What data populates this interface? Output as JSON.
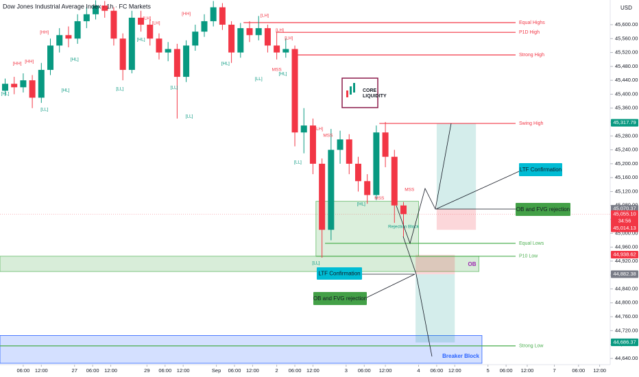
{
  "chart_data": {
    "type": "candlestick",
    "title": "Dow Jones Industrial Average Index · 1h · FC Markets",
    "currency": "USD",
    "xlim": [
      -1.7,
      200.5
    ],
    "ylim": [
      44626,
      45671
    ],
    "xticks": [
      {
        "value": 6,
        "label": "06:00"
      },
      {
        "value": 12,
        "label": "12:00"
      },
      {
        "value": 23,
        "label": "27"
      },
      {
        "value": 29,
        "label": "06:00"
      },
      {
        "value": 35,
        "label": "12:00"
      },
      {
        "value": 47,
        "label": "29"
      },
      {
        "value": 53,
        "label": "06:00"
      },
      {
        "value": 59,
        "label": "12:00"
      },
      {
        "value": 70,
        "label": "Sep"
      },
      {
        "value": 76,
        "label": "06:00"
      },
      {
        "value": 82,
        "label": "12:00"
      },
      {
        "value": 90,
        "label": "2"
      },
      {
        "value": 96,
        "label": "06:00"
      },
      {
        "value": 102,
        "label": "12:00"
      },
      {
        "value": 113,
        "label": "3"
      },
      {
        "value": 119,
        "label": "06:00"
      },
      {
        "value": 126,
        "label": "12:00"
      },
      {
        "value": 137,
        "label": "4"
      },
      {
        "value": 143,
        "label": "06:00"
      },
      {
        "value": 149,
        "label": "12:00"
      },
      {
        "value": 160,
        "label": "5"
      },
      {
        "value": 166,
        "label": "06:00"
      },
      {
        "value": 173,
        "label": "12:00"
      },
      {
        "value": 182,
        "label": "7"
      },
      {
        "value": 190,
        "label": "06:00"
      },
      {
        "value": 197,
        "label": "12:00"
      }
    ],
    "yticks": [
      {
        "value": 44640,
        "label": "44,640.00"
      },
      {
        "value": 44680,
        "label": "44,680.00"
      },
      {
        "value": 44720,
        "label": "44,720.00"
      },
      {
        "value": 44760,
        "label": "44,760.00"
      },
      {
        "value": 44800,
        "label": "44,800.00"
      },
      {
        "value": 44840,
        "label": "44,840.00"
      },
      {
        "value": 44880,
        "label": "44,880.00"
      },
      {
        "value": 44920,
        "label": "44,920.00"
      },
      {
        "value": 44960,
        "label": "44,960.00"
      },
      {
        "value": 45000,
        "label": "45,000.00"
      },
      {
        "value": 45040,
        "label": "45,040.00"
      },
      {
        "value": 45080,
        "label": "45,080.00"
      },
      {
        "value": 45120,
        "label": "45,120.00"
      },
      {
        "value": 45160,
        "label": "45,160.00"
      },
      {
        "value": 45200,
        "label": "45,200.00"
      },
      {
        "value": 45240,
        "label": "45,240.00"
      },
      {
        "value": 45280,
        "label": "45,280.00"
      },
      {
        "value": 45320,
        "label": "45,320.00"
      },
      {
        "value": 45360,
        "label": "45,360.00"
      },
      {
        "value": 45400,
        "label": "45,400.00"
      },
      {
        "value": 45440,
        "label": "45,440.00"
      },
      {
        "value": 45480,
        "label": "45,480.00"
      },
      {
        "value": 45520,
        "label": "45,520.00"
      },
      {
        "value": 45560,
        "label": "45,560.00"
      },
      {
        "value": 45600,
        "label": "45,600.00"
      }
    ],
    "up_color": "#089981",
    "down_color": "#f23645",
    "x": [
      0,
      3,
      6,
      9,
      12,
      15,
      18,
      21,
      24,
      27,
      30,
      33,
      36,
      39,
      42,
      45,
      48,
      51,
      54,
      57,
      60,
      63,
      66,
      69,
      72,
      75,
      78,
      81,
      84,
      87,
      90,
      93,
      96,
      99,
      102,
      105,
      108,
      111,
      114,
      117,
      120,
      123,
      126,
      129,
      132
    ],
    "open": [
      45410,
      45430,
      45420,
      45440,
      45390,
      45470,
      45540,
      45570,
      45560,
      45610,
      45630,
      45655,
      45640,
      45560,
      45470,
      45620,
      45600,
      45560,
      45520,
      45530,
      45450,
      45540,
      45580,
      45610,
      45650,
      45600,
      45520,
      45590,
      45570,
      45590,
      45540,
      45520,
      45530,
      45290,
      45310,
      45200,
      45010,
      45240,
      45270,
      45200,
      45150,
      45110,
      45290,
      45220,
      45080
    ],
    "high": [
      45445,
      45450,
      45460,
      45455,
      45490,
      45560,
      45590,
      45595,
      45630,
      45650,
      45670,
      45668,
      45650,
      45575,
      45640,
      45640,
      45615,
      45575,
      45550,
      45545,
      45555,
      45600,
      45630,
      45668,
      45662,
      45610,
      45605,
      45610,
      45625,
      45600,
      45580,
      45560,
      45540,
      45360,
      45330,
      45215,
      45300,
      45295,
      45285,
      45220,
      45170,
      45310,
      45320,
      45240,
      45090
    ],
    "low": [
      45395,
      45400,
      45405,
      45360,
      45375,
      45455,
      45520,
      45535,
      45545,
      45590,
      45615,
      45620,
      45540,
      45440,
      45460,
      45580,
      45540,
      45500,
      45495,
      45330,
      45435,
      45525,
      45565,
      45595,
      45585,
      45490,
      45505,
      45550,
      45555,
      45520,
      45500,
      45505,
      45250,
      45230,
      45170,
      44930,
      44980,
      45200,
      45170,
      45120,
      45085,
      45095,
      45190,
      45030,
      44990
    ],
    "close": [
      45430,
      45420,
      45440,
      45390,
      45470,
      45540,
      45570,
      45560,
      45610,
      45630,
      45655,
      45640,
      45560,
      45470,
      45620,
      45600,
      45560,
      45520,
      45530,
      45450,
      45540,
      45580,
      45610,
      45650,
      45600,
      45520,
      45590,
      45570,
      45590,
      45540,
      45520,
      45530,
      45290,
      45310,
      45200,
      45010,
      45240,
      45270,
      45200,
      45150,
      45110,
      45290,
      45220,
      45080,
      45055
    ],
    "current_price": 45055.1,
    "levels": [
      {
        "label": "Equal Highs",
        "price": 45606,
        "x_start": 79,
        "color": "#f23645"
      },
      {
        "label": "P1D High",
        "price": 45578,
        "x_start": 90,
        "color": "#f23645"
      },
      {
        "label": "Strong High",
        "price": 45513,
        "x_start": 96,
        "color": "#f23645"
      },
      {
        "label": "Swing High",
        "price": 45316,
        "x_start": 124,
        "color": "#f23645"
      },
      {
        "label": "Equal Lows",
        "price": 44971,
        "x_start": 106,
        "color": "#4caf50"
      },
      {
        "label": "P10 Low",
        "price": 44934,
        "x_start": 103,
        "color": "#4caf50"
      },
      {
        "label": "Strong Low",
        "price": 44676,
        "x_start": -1.7,
        "color": "#4caf50"
      }
    ],
    "zones": [
      {
        "label": "OB",
        "x": [
          -1.7,
          157
        ],
        "price": [
          44890,
          44934
        ],
        "fill": "rgba(76,175,80,0.22)",
        "stroke": "#66bb6a",
        "label_color": "#9c27b0"
      },
      {
        "label": "Breaker Block",
        "x": [
          -1.7,
          158
        ],
        "price": [
          44626,
          44706
        ],
        "fill": "rgba(41,98,255,0.2)",
        "stroke": "#2962ff",
        "label_color": "#2962ff"
      },
      {
        "x": [
          103,
          137
        ],
        "price": [
          44934,
          45092
        ],
        "fill": "rgba(76,175,80,0.2)",
        "stroke": "#66bb6a"
      },
      {
        "x": [
          143,
          156
        ],
        "price": [
          45070,
          45317
        ],
        "fill": "rgba(38,166,154,0.2)",
        "stroke": "none"
      },
      {
        "x": [
          143,
          156
        ],
        "price": [
          45010,
          45070
        ],
        "fill": "rgba(242,54,69,0.2)",
        "stroke": "none"
      },
      {
        "x": [
          136,
          149
        ],
        "price": [
          44882,
          44938
        ],
        "fill": "rgba(242,54,69,0.2)",
        "stroke": "none"
      },
      {
        "x": [
          136,
          149
        ],
        "price": [
          44686,
          44882
        ],
        "fill": "rgba(38,166,154,0.2)",
        "stroke": "none"
      }
    ],
    "structure_labels": [
      {
        "text": "[HL]",
        "x": 0,
        "price": 45401,
        "color": "#089981"
      },
      {
        "text": "[HH]",
        "x": 4,
        "price": 45488,
        "color": "#f23645"
      },
      {
        "text": "[HH]",
        "x": 8,
        "price": 45494,
        "color": "#f23645"
      },
      {
        "text": "[HH]",
        "x": 13,
        "price": 45578,
        "color": "#f23645"
      },
      {
        "text": "[LL]",
        "x": 13,
        "price": 45356,
        "color": "#089981"
      },
      {
        "text": "[HL]",
        "x": 20,
        "price": 45411,
        "color": "#089981"
      },
      {
        "text": "[HL]",
        "x": 23,
        "price": 45500,
        "color": "#089981"
      },
      {
        "text": "[LL]",
        "x": 38,
        "price": 45415,
        "color": "#089981"
      },
      {
        "text": "[LH]",
        "x": 47,
        "price": 45618,
        "color": "#f23645"
      },
      {
        "text": "[LH]",
        "x": 50,
        "price": 45604,
        "color": "#f23645"
      },
      {
        "text": "[HL]",
        "x": 45,
        "price": 45557,
        "color": "#089981"
      },
      {
        "text": "[LL]",
        "x": 56,
        "price": 45419,
        "color": "#089981"
      },
      {
        "text": "[HH]",
        "x": 60,
        "price": 45631,
        "color": "#f23645"
      },
      {
        "text": "[LL]",
        "x": 61,
        "price": 45336,
        "color": "#089981"
      },
      {
        "text": "[HL]",
        "x": 73,
        "price": 45488,
        "color": "#089981"
      },
      {
        "text": "[LH]",
        "x": 86,
        "price": 45626,
        "color": "#f23645"
      },
      {
        "text": "[LH]",
        "x": 91,
        "price": 45584,
        "color": "#f23645"
      },
      {
        "text": "[LH]",
        "x": 94,
        "price": 45561,
        "color": "#f23645"
      },
      {
        "text": "[LL]",
        "x": 84,
        "price": 45444,
        "color": "#089981"
      },
      {
        "text": "[HL]",
        "x": 92,
        "price": 45458,
        "color": "#089981"
      },
      {
        "text": "[LL]",
        "x": 97,
        "price": 45204,
        "color": "#089981"
      },
      {
        "text": "[LH]",
        "x": 104,
        "price": 45300,
        "color": "#f23645"
      },
      {
        "text": "[HL]",
        "x": 118,
        "price": 45084,
        "color": "#089981"
      },
      {
        "text": "[LL]",
        "x": 103,
        "price": 44914,
        "color": "#089981"
      },
      {
        "text": "MSS",
        "x": 90,
        "price": 45470,
        "color": "#f23645"
      },
      {
        "text": "MSS",
        "x": 107,
        "price": 45281,
        "color": "#f23645"
      },
      {
        "text": "MSS",
        "x": 124,
        "price": 45101,
        "color": "#f23645"
      },
      {
        "text": "MSS",
        "x": 134,
        "price": 45125,
        "color": "#f23645"
      },
      {
        "text": "Rejection Block",
        "x": 132,
        "price": 45019,
        "color": "#089981"
      }
    ],
    "price_tags": [
      {
        "value": 45317.79,
        "label": "45,317.79",
        "color": "#089981"
      },
      {
        "value": 45070.37,
        "label": "45,070.37",
        "color": "#787b86"
      },
      {
        "value": 45055.1,
        "label": "45,055.10",
        "color": "#f23645",
        "countdown": "34:56"
      },
      {
        "value": 45014.13,
        "label": "45,014.13",
        "color": "#f23645"
      },
      {
        "value": 44938.62,
        "label": "44,938.62",
        "color": "#f23645"
      },
      {
        "value": 44882.38,
        "label": "44,882.38",
        "color": "#787b86"
      },
      {
        "value": 44686.37,
        "label": "44,686.37",
        "color": "#089981"
      }
    ],
    "callouts": [
      "LTF Confirmation",
      "OB and FVG rejection",
      "LTF Confirmation",
      "OB and FVG rejection"
    ],
    "logo": [
      "CORE",
      "LIQUIDITY"
    ]
  }
}
